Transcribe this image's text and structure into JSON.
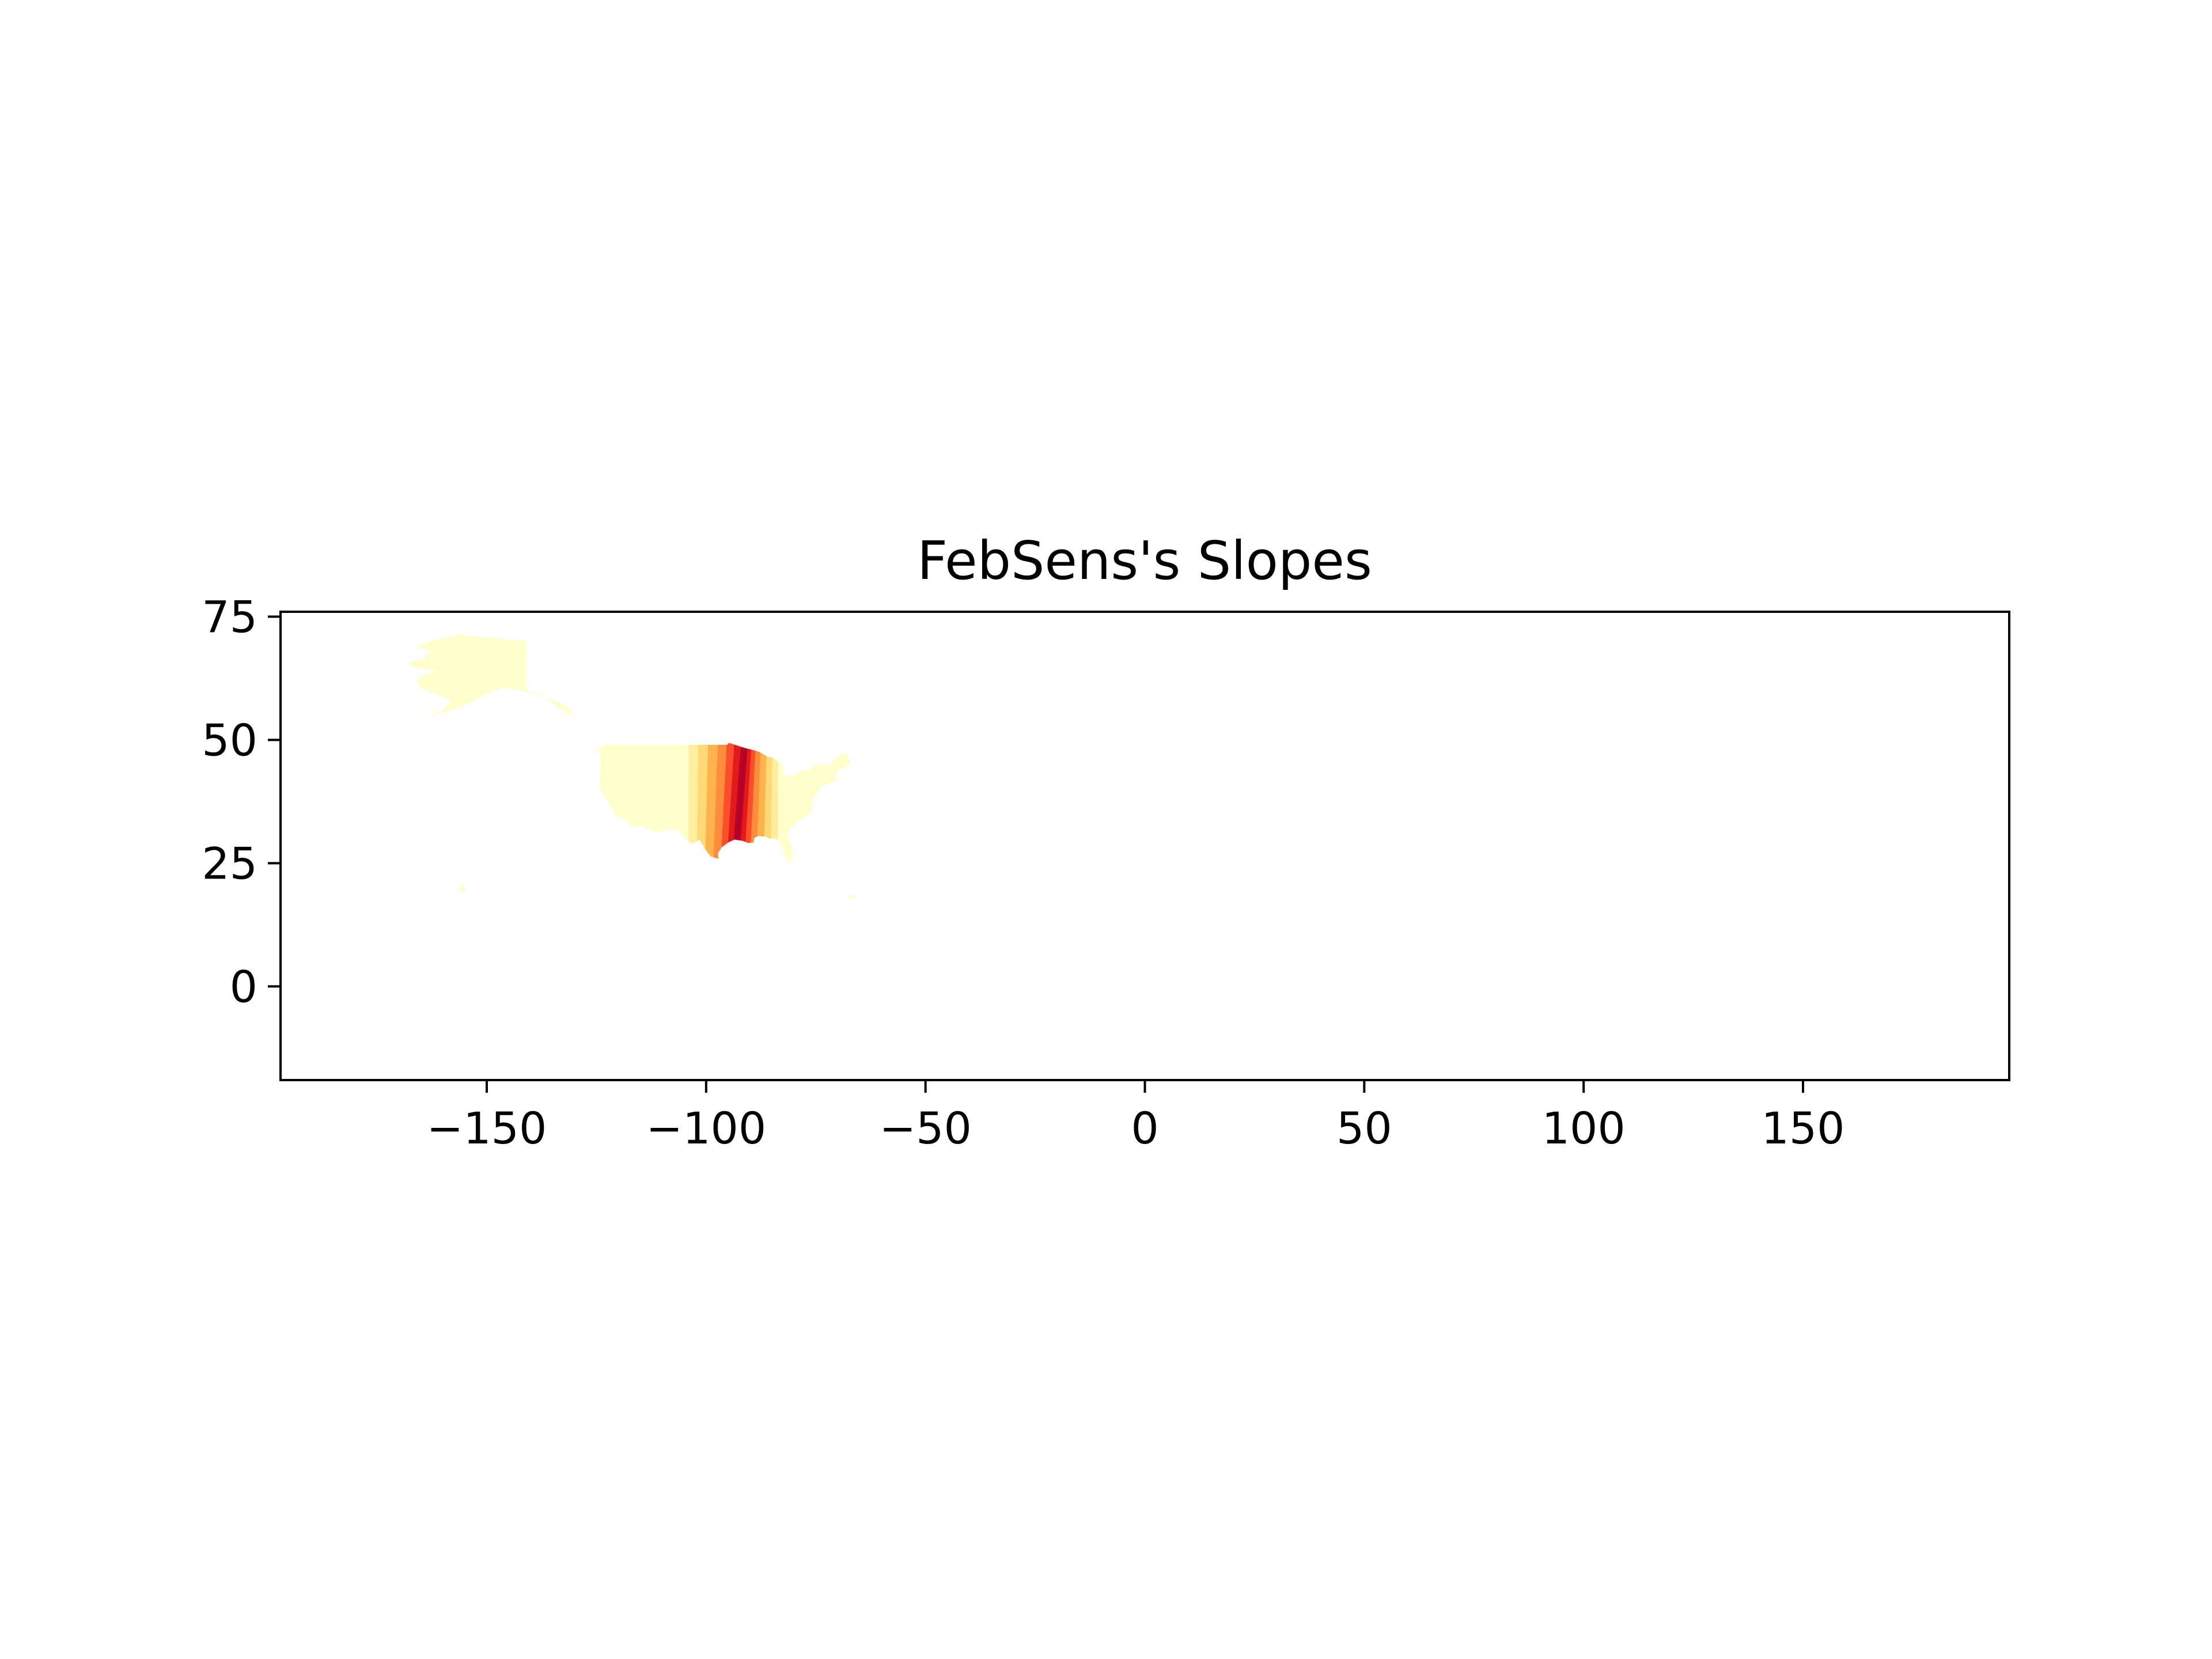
{
  "chart_data": {
    "type": "heatmap",
    "title": "FebSens's Slopes",
    "xlabel": "",
    "ylabel": "",
    "xlim": [
      -197,
      197
    ],
    "ylim": [
      -19,
      76
    ],
    "x_ticks": [
      -150,
      -100,
      -50,
      0,
      50,
      100,
      150
    ],
    "x_tick_labels": [
      "−150",
      "−100",
      "−50",
      "0",
      "50",
      "100",
      "150"
    ],
    "y_ticks": [
      0,
      25,
      50,
      75
    ],
    "y_tick_labels": [
      "0",
      "25",
      "50",
      "75"
    ],
    "grid": false,
    "colormap": [
      "#ffffcc",
      "#ffeda0",
      "#fed976",
      "#feb24c",
      "#fd8d3c",
      "#fc4e2a",
      "#e31a1c",
      "#bd0026",
      "#800026"
    ],
    "peak_longitude": -92
  }
}
